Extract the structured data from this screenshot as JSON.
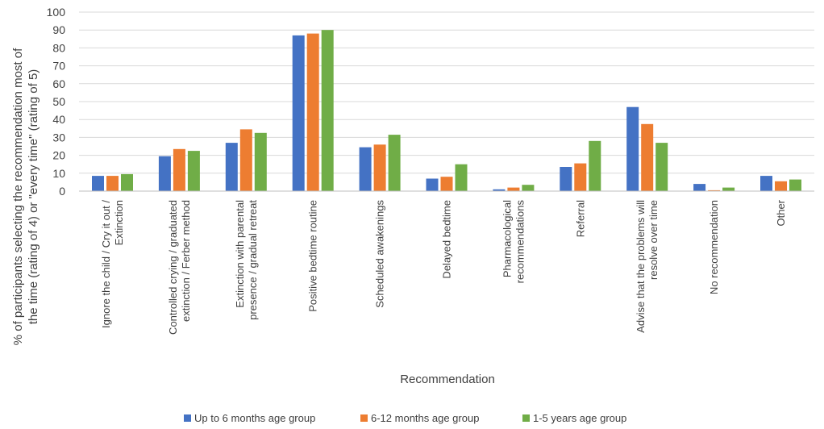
{
  "chart_data": {
    "type": "bar",
    "xlabel": "Recommendation",
    "ylabel_lines": [
      "% of participants selecting the recommendation most of",
      "the time (rating of 4) or \"every time\" (rating of 5)"
    ],
    "ylim": [
      0,
      100
    ],
    "ytick_step": 10,
    "grid": true,
    "legend_position": "bottom",
    "categories": [
      [
        "Ignore the child / Cry it out /",
        "Extinction"
      ],
      [
        "Controlled crying / graduated",
        "extinction / Ferber method"
      ],
      [
        "Extinction with parental",
        "presence / gradual retreat"
      ],
      [
        "Positive bedtime routine"
      ],
      [
        "Scheduled awakenings"
      ],
      [
        "Delayed bedtime"
      ],
      [
        "Pharmacological",
        "recommendations"
      ],
      [
        "Referral"
      ],
      [
        "Advise that the problems will",
        "resolve over time"
      ],
      [
        "No recommendation"
      ],
      [
        "Other"
      ]
    ],
    "series": [
      {
        "name": "Up to 6 months age group",
        "color": "#4472C4",
        "values": [
          8.5,
          19.5,
          27,
          87,
          24.5,
          7,
          1,
          13.5,
          47,
          4,
          8.5
        ]
      },
      {
        "name": "6-12 months age group",
        "color": "#ED7D31",
        "values": [
          8.5,
          23.5,
          34.5,
          88,
          26,
          8,
          2,
          15.5,
          37.5,
          0.5,
          5.5
        ]
      },
      {
        "name": "1-5 years age group",
        "color": "#70AD47",
        "values": [
          9.5,
          22.5,
          32.5,
          90,
          31.5,
          15,
          3.5,
          28,
          27,
          2,
          6.5
        ]
      }
    ]
  }
}
